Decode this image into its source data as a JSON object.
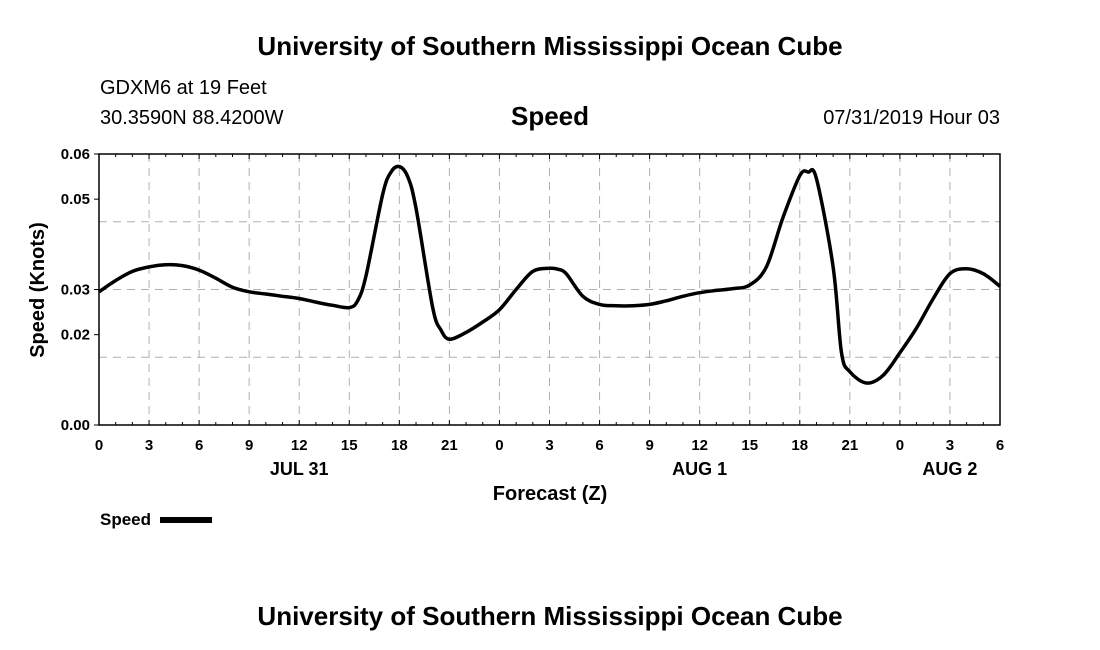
{
  "header": {
    "title": "University of Southern Mississippi Ocean Cube",
    "station": "GDXM6 at 19 Feet",
    "coordinates": "30.3590N 88.4200W",
    "datetime": "07/31/2019 Hour 03"
  },
  "footer": {
    "title": "University of Southern Mississippi Ocean Cube"
  },
  "legend": {
    "label": "Speed"
  },
  "colors": {
    "line": "#000000",
    "grid": "#b0b0b0"
  },
  "chart_data": {
    "type": "line",
    "title": "Speed",
    "xlabel": "Forecast (Z)",
    "ylabel": "Speed (Knots)",
    "x_range_hours": [
      0,
      54
    ],
    "ylim": [
      0,
      0.06
    ],
    "grid": true,
    "legend_position": "bottom-left",
    "x_ticks": [
      {
        "hour": 0,
        "label": "0"
      },
      {
        "hour": 3,
        "label": "3"
      },
      {
        "hour": 6,
        "label": "6"
      },
      {
        "hour": 9,
        "label": "9"
      },
      {
        "hour": 12,
        "label": "12"
      },
      {
        "hour": 15,
        "label": "15"
      },
      {
        "hour": 18,
        "label": "18"
      },
      {
        "hour": 21,
        "label": "21"
      },
      {
        "hour": 24,
        "label": "0"
      },
      {
        "hour": 27,
        "label": "3"
      },
      {
        "hour": 30,
        "label": "6"
      },
      {
        "hour": 33,
        "label": "9"
      },
      {
        "hour": 36,
        "label": "12"
      },
      {
        "hour": 39,
        "label": "15"
      },
      {
        "hour": 42,
        "label": "18"
      },
      {
        "hour": 45,
        "label": "21"
      },
      {
        "hour": 48,
        "label": "0"
      },
      {
        "hour": 51,
        "label": "3"
      },
      {
        "hour": 54,
        "label": "6"
      }
    ],
    "y_ticks": [
      {
        "value": 0,
        "label": "0.00"
      },
      {
        "value": 0.02,
        "label": "0.02"
      },
      {
        "value": 0.03,
        "label": "0.03"
      },
      {
        "value": 0.05,
        "label": "0.05"
      },
      {
        "value": 0.06,
        "label": "0.06"
      }
    ],
    "y_gridlines": [
      0.015,
      0.03,
      0.045
    ],
    "date_labels": [
      {
        "hour": 12,
        "label": "JUL 31"
      },
      {
        "hour": 36,
        "label": "AUG 1"
      },
      {
        "hour": 51,
        "label": "AUG 2"
      }
    ],
    "series": [
      {
        "name": "Speed",
        "x": [
          0,
          1,
          2,
          3,
          4,
          5,
          6,
          7,
          8,
          9,
          10,
          11,
          12,
          13,
          14,
          15,
          15.5,
          16,
          17,
          17.5,
          18,
          18.5,
          19,
          20,
          20.5,
          21,
          22,
          23,
          24,
          25,
          26,
          27,
          27.5,
          28,
          29,
          30,
          31,
          32,
          33,
          34,
          35,
          36,
          37,
          38,
          39,
          40,
          41,
          42,
          42.5,
          43,
          44,
          44.5,
          45,
          46,
          47,
          48,
          49,
          50,
          51,
          52,
          53,
          54
        ],
        "y": [
          0.0295,
          0.032,
          0.034,
          0.035,
          0.0355,
          0.0353,
          0.0343,
          0.0325,
          0.0305,
          0.0295,
          0.029,
          0.0285,
          0.028,
          0.0272,
          0.0265,
          0.026,
          0.0275,
          0.033,
          0.051,
          0.056,
          0.0572,
          0.055,
          0.048,
          0.026,
          0.021,
          0.019,
          0.0205,
          0.0228,
          0.0255,
          0.03,
          0.034,
          0.0347,
          0.0345,
          0.0335,
          0.0285,
          0.0267,
          0.0264,
          0.0264,
          0.0267,
          0.0275,
          0.0285,
          0.0293,
          0.0298,
          0.0302,
          0.031,
          0.035,
          0.046,
          0.0552,
          0.056,
          0.0545,
          0.035,
          0.016,
          0.0118,
          0.0093,
          0.011,
          0.016,
          0.0215,
          0.028,
          0.0335,
          0.0346,
          0.0335,
          0.0307
        ]
      }
    ]
  }
}
